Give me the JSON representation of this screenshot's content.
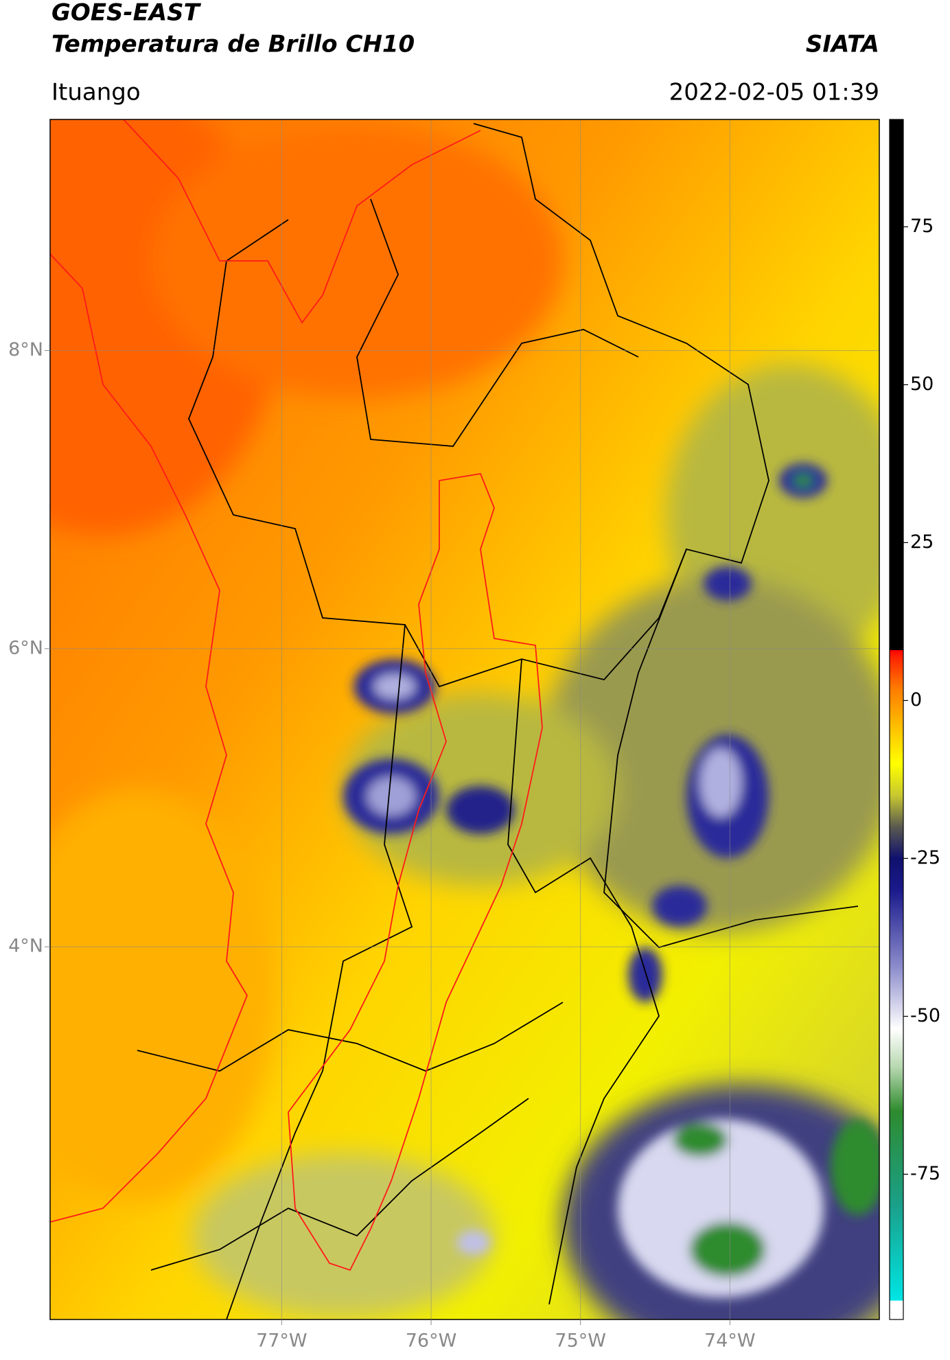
{
  "chart_data": {
    "type": "map",
    "title": "GOES-EAST",
    "subtitle": "Temperatura de Brillo CH10",
    "source": "SIATA",
    "location": "Ituango",
    "timestamp": "2022-02-05 01:39",
    "xlim": [
      -78.55,
      -73.0
    ],
    "ylim": [
      1.5,
      9.55
    ],
    "xticks": [
      {
        "value": -77,
        "label": "77°W"
      },
      {
        "value": -76,
        "label": "76°W"
      },
      {
        "value": -75,
        "label": "75°W"
      },
      {
        "value": -74,
        "label": "74°W"
      }
    ],
    "yticks": [
      {
        "value": 8,
        "label": "8°N"
      },
      {
        "value": 6,
        "label": "6°N"
      },
      {
        "value": 4,
        "label": "4°N"
      }
    ],
    "grid": true,
    "colorbar": {
      "range": [
        -98,
        92
      ],
      "ticks": [
        75,
        50,
        25,
        0,
        -25,
        -50,
        -75
      ],
      "stops": [
        [
          -98,
          "#ffffff"
        ],
        [
          -95,
          "#ffffff"
        ],
        [
          -95,
          "#00e5e5"
        ],
        [
          -80,
          "#1aa08a"
        ],
        [
          -65,
          "#2e8b2e"
        ],
        [
          -58,
          "#b8d8b0"
        ],
        [
          -52,
          "#ffffff"
        ],
        [
          -42,
          "#8a8acb"
        ],
        [
          -30,
          "#1a1a8c"
        ],
        [
          -25,
          "#10106e"
        ],
        [
          -20,
          "#5a5a50"
        ],
        [
          -15,
          "#c8c830"
        ],
        [
          -10,
          "#ffff00"
        ],
        [
          -5,
          "#ffc800"
        ],
        [
          2,
          "#ff7a00"
        ],
        [
          7,
          "#ff2000"
        ],
        [
          8,
          "#ff0000"
        ],
        [
          8,
          "#000000"
        ],
        [
          92,
          "#000000"
        ]
      ]
    }
  }
}
